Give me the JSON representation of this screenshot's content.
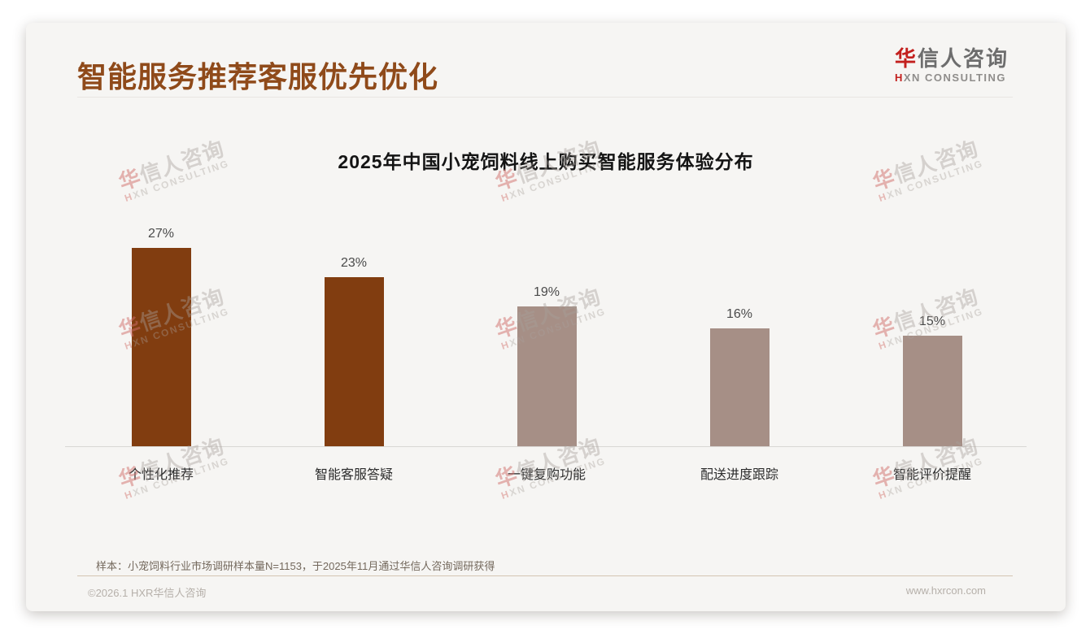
{
  "page": {
    "title": "智能服务推荐客服优先优化",
    "logo": {
      "cn_first": "华",
      "cn_rest": "信人咨询",
      "en_first": "H",
      "en_rest": "XN CONSULTING"
    },
    "watermark": {
      "line1_first": "华",
      "line1_rest": "信人咨询",
      "line2_first": "H",
      "line2_rest": "XN CONSULTING"
    },
    "sample_note": "样本：小宠饲料行业市场调研样本量N=1153，于2025年11月通过华信人咨询调研获得",
    "footer": {
      "copyright": "©2026.1 HXR华信人咨询",
      "website": "www.hxrcon.com"
    }
  },
  "chart_data": {
    "type": "bar",
    "title": "2025年中国小宠饲料线上购买智能服务体验分布",
    "categories": [
      "个性化推荐",
      "智能客服答疑",
      "一键复购功能",
      "配送进度跟踪",
      "智能评价提醒"
    ],
    "values": [
      27,
      23,
      19,
      16,
      15
    ],
    "value_labels": [
      "27%",
      "23%",
      "19%",
      "16%",
      "15%"
    ],
    "unit": "%",
    "bar_colors": [
      "#813d10",
      "#813d10",
      "#a68f86",
      "#a68f86",
      "#a68f86"
    ],
    "xlabel": "",
    "ylabel": "",
    "ylim": [
      0,
      30
    ],
    "grid": false,
    "legend": "none",
    "colors": {
      "highlight_bar": "#813d10",
      "regular_bar": "#a68f86",
      "title_accent": "#8f4a1a",
      "logo_red": "#c3201e"
    }
  }
}
